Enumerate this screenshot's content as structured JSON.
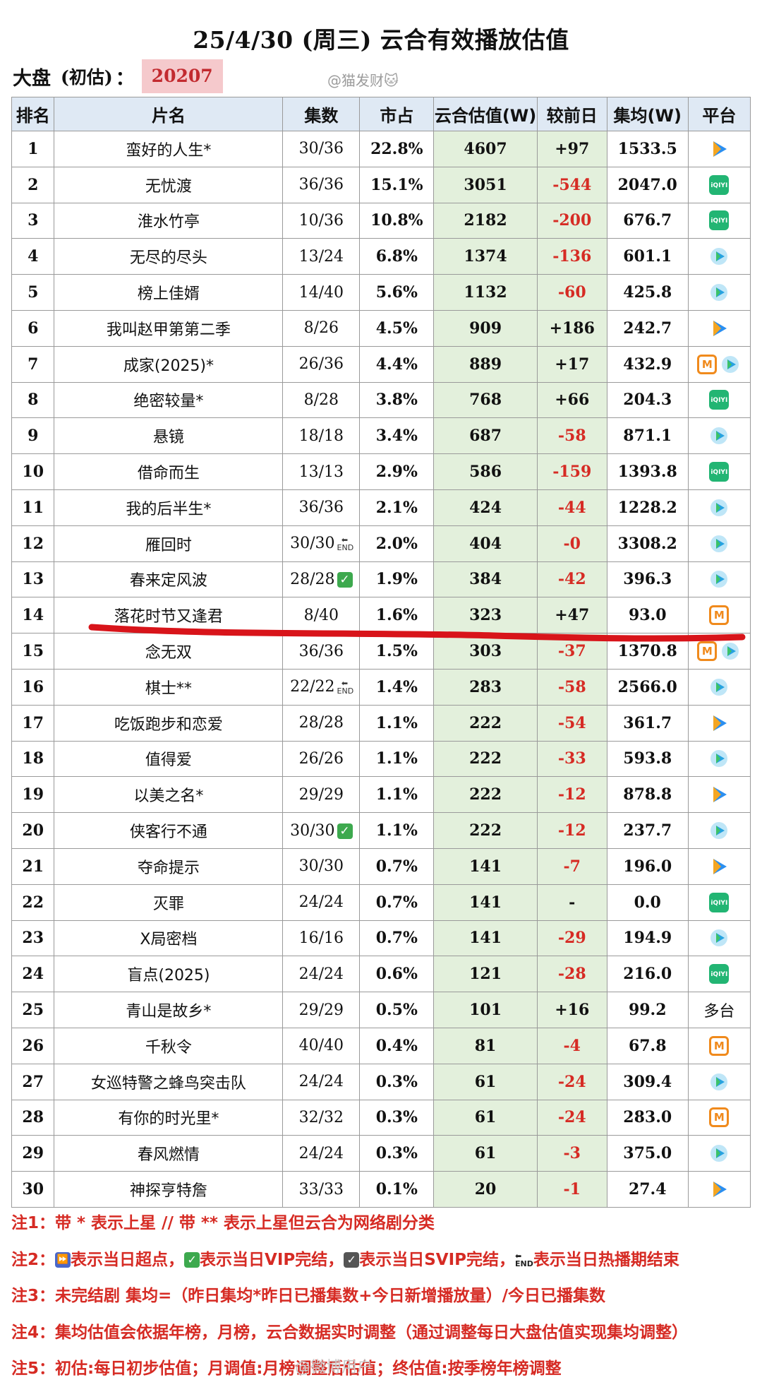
{
  "title": "25/4/30 (周三) 云合有效播放估值",
  "dapan": {
    "label": "大盘",
    "sub": "(初估)",
    "colon": "：",
    "value": "20207"
  },
  "watermark": "@猫发财🐱",
  "columns": [
    "排名",
    "片名",
    "集数",
    "市占",
    "云合估值(W)",
    "较前日",
    "集均(W)",
    "平台"
  ],
  "rows": [
    {
      "rank": "1",
      "name": "蛮好的人生*",
      "ep": "30/36",
      "badge": "",
      "share": "22.8%",
      "est": "4607",
      "delta": "+97",
      "neg": false,
      "avg": "1533.5",
      "platform": [
        "tencent"
      ]
    },
    {
      "rank": "2",
      "name": "无忧渡",
      "ep": "36/36",
      "badge": "",
      "share": "15.1%",
      "est": "3051",
      "delta": "-544",
      "neg": true,
      "avg": "2047.0",
      "platform": [
        "iqiyi"
      ]
    },
    {
      "rank": "3",
      "name": "淮水竹亭",
      "ep": "10/36",
      "badge": "",
      "share": "10.8%",
      "est": "2182",
      "delta": "-200",
      "neg": true,
      "avg": "676.7",
      "platform": [
        "iqiyi"
      ]
    },
    {
      "rank": "4",
      "name": "无尽的尽头",
      "ep": "13/24",
      "badge": "",
      "share": "6.8%",
      "est": "1374",
      "delta": "-136",
      "neg": true,
      "avg": "601.1",
      "platform": [
        "youku"
      ]
    },
    {
      "rank": "5",
      "name": "榜上佳婿",
      "ep": "14/40",
      "badge": "",
      "share": "5.6%",
      "est": "1132",
      "delta": "-60",
      "neg": true,
      "avg": "425.8",
      "platform": [
        "youku"
      ]
    },
    {
      "rank": "6",
      "name": "我叫赵甲第第二季",
      "ep": "8/26",
      "badge": "",
      "share": "4.5%",
      "est": "909",
      "delta": "+186",
      "neg": false,
      "avg": "242.7",
      "platform": [
        "tencent"
      ]
    },
    {
      "rank": "7",
      "name": "成家(2025)*",
      "ep": "26/36",
      "badge": "",
      "share": "4.4%",
      "est": "889",
      "delta": "+17",
      "neg": false,
      "avg": "432.9",
      "platform": [
        "mango",
        "youku"
      ]
    },
    {
      "rank": "8",
      "name": "绝密较量*",
      "ep": "8/28",
      "badge": "",
      "share": "3.8%",
      "est": "768",
      "delta": "+66",
      "neg": false,
      "avg": "204.3",
      "platform": [
        "iqiyi"
      ]
    },
    {
      "rank": "9",
      "name": "悬镜",
      "ep": "18/18",
      "badge": "",
      "share": "3.4%",
      "est": "687",
      "delta": "-58",
      "neg": true,
      "avg": "871.1",
      "platform": [
        "youku"
      ]
    },
    {
      "rank": "10",
      "name": "借命而生",
      "ep": "13/13",
      "badge": "",
      "share": "2.9%",
      "est": "586",
      "delta": "-159",
      "neg": true,
      "avg": "1393.8",
      "platform": [
        "iqiyi"
      ]
    },
    {
      "rank": "11",
      "name": "我的后半生*",
      "ep": "36/36",
      "badge": "",
      "share": "2.1%",
      "est": "424",
      "delta": "-44",
      "neg": true,
      "avg": "1228.2",
      "platform": [
        "youku"
      ]
    },
    {
      "rank": "12",
      "name": "雁回时",
      "ep": "30/30",
      "badge": "end",
      "share": "2.0%",
      "est": "404",
      "delta": "-0",
      "neg": true,
      "avg": "3308.2",
      "platform": [
        "youku"
      ]
    },
    {
      "rank": "13",
      "name": "春来定风波",
      "ep": "28/28",
      "badge": "vip",
      "share": "1.9%",
      "est": "384",
      "delta": "-42",
      "neg": true,
      "avg": "396.3",
      "platform": [
        "youku"
      ]
    },
    {
      "rank": "14",
      "name": "落花时节又逢君",
      "ep": "8/40",
      "badge": "",
      "share": "1.6%",
      "est": "323",
      "delta": "+47",
      "neg": false,
      "avg": "93.0",
      "platform": [
        "mango"
      ]
    },
    {
      "rank": "15",
      "name": "念无双",
      "ep": "36/36",
      "badge": "",
      "share": "1.5%",
      "est": "303",
      "delta": "-37",
      "neg": true,
      "avg": "1370.8",
      "platform": [
        "mango",
        "youku"
      ]
    },
    {
      "rank": "16",
      "name": "棋士**",
      "ep": "22/22",
      "badge": "end",
      "share": "1.4%",
      "est": "283",
      "delta": "-58",
      "neg": true,
      "avg": "2566.0",
      "platform": [
        "youku"
      ]
    },
    {
      "rank": "17",
      "name": "吃饭跑步和恋爱",
      "ep": "28/28",
      "badge": "",
      "share": "1.1%",
      "est": "222",
      "delta": "-54",
      "neg": true,
      "avg": "361.7",
      "platform": [
        "tencent"
      ]
    },
    {
      "rank": "18",
      "name": "值得爱",
      "ep": "26/26",
      "badge": "",
      "share": "1.1%",
      "est": "222",
      "delta": "-33",
      "neg": true,
      "avg": "593.8",
      "platform": [
        "youku"
      ]
    },
    {
      "rank": "19",
      "name": "以美之名*",
      "ep": "29/29",
      "badge": "",
      "share": "1.1%",
      "est": "222",
      "delta": "-12",
      "neg": true,
      "avg": "878.8",
      "platform": [
        "tencent"
      ]
    },
    {
      "rank": "20",
      "name": "侠客行不通",
      "ep": "30/30",
      "badge": "vip",
      "share": "1.1%",
      "est": "222",
      "delta": "-12",
      "neg": true,
      "avg": "237.7",
      "platform": [
        "youku"
      ]
    },
    {
      "rank": "21",
      "name": "夺命提示",
      "ep": "30/30",
      "badge": "",
      "share": "0.7%",
      "est": "141",
      "delta": "-7",
      "neg": true,
      "avg": "196.0",
      "platform": [
        "tencent"
      ]
    },
    {
      "rank": "22",
      "name": "灭罪",
      "ep": "24/24",
      "badge": "",
      "share": "0.7%",
      "est": "141",
      "delta": "-",
      "neg": false,
      "avg": "0.0",
      "platform": [
        "iqiyi"
      ]
    },
    {
      "rank": "23",
      "name": "X局密档",
      "ep": "16/16",
      "badge": "",
      "share": "0.7%",
      "est": "141",
      "delta": "-29",
      "neg": true,
      "avg": "194.9",
      "platform": [
        "youku"
      ]
    },
    {
      "rank": "24",
      "name": "盲点(2025)",
      "ep": "24/24",
      "badge": "",
      "share": "0.6%",
      "est": "121",
      "delta": "-28",
      "neg": true,
      "avg": "216.0",
      "platform": [
        "iqiyi"
      ]
    },
    {
      "rank": "25",
      "name": "青山是故乡*",
      "ep": "29/29",
      "badge": "",
      "share": "0.5%",
      "est": "101",
      "delta": "+16",
      "neg": false,
      "avg": "99.2",
      "platform": [
        "text"
      ],
      "platform_text": "多台"
    },
    {
      "rank": "26",
      "name": "千秋令",
      "ep": "40/40",
      "badge": "",
      "share": "0.4%",
      "est": "81",
      "delta": "-4",
      "neg": true,
      "avg": "67.8",
      "platform": [
        "mango"
      ]
    },
    {
      "rank": "27",
      "name": "女巡特警之蜂鸟突击队",
      "ep": "24/24",
      "badge": "",
      "share": "0.3%",
      "est": "61",
      "delta": "-24",
      "neg": true,
      "avg": "309.4",
      "platform": [
        "youku"
      ]
    },
    {
      "rank": "28",
      "name": "有你的时光里*",
      "ep": "32/32",
      "badge": "",
      "share": "0.3%",
      "est": "61",
      "delta": "-24",
      "neg": true,
      "avg": "283.0",
      "platform": [
        "mango"
      ]
    },
    {
      "rank": "29",
      "name": "春风燃情",
      "ep": "24/24",
      "badge": "",
      "share": "0.3%",
      "est": "61",
      "delta": "-3",
      "neg": true,
      "avg": "375.0",
      "platform": [
        "youku"
      ]
    },
    {
      "rank": "30",
      "name": "神探亨特詹",
      "ep": "33/33",
      "badge": "",
      "share": "0.1%",
      "est": "20",
      "delta": "-1",
      "neg": true,
      "avg": "27.4",
      "platform": [
        "tencent"
      ]
    }
  ],
  "notes": {
    "n1": "注1：带 * 表示上星 // 带 ** 表示上星但云合为网络剧分类",
    "n2a": "注2：",
    "n2b": "表示当日超点，",
    "n2c": "表示当日VIP完结，",
    "n2d": "表示当日SVIP完结，",
    "n2e": "表示当日热播期结束",
    "n3": "注3：未完结剧 集均=（昨日集均*昨日已播集数+今日新增播放量）/今日已播集数",
    "n4": "注4：集均估值会依据年榜，月榜，云合数据实时调整（通过调整每日大盘估值实现集均调整）",
    "n5": "注5：初估:每日初步估值；月调值:月榜调整后估值；终估值:按季榜年榜调整"
  },
  "corner_watermark": "@微博用户",
  "colors": {
    "negative": "#d62b24",
    "header_bg": "#dfe9f4",
    "est_bg": "#e3f0dc",
    "dapan_bg": "#f5c9cc",
    "underline": "#d8141a"
  },
  "icon_names": {
    "tencent": "tencent-video-icon",
    "iqiyi": "iqiyi-icon",
    "youku": "youku-icon",
    "mango": "mango-tv-icon"
  },
  "end_badge_text": "END",
  "iqiyi_text": "iQIYI",
  "mango_text": "M"
}
